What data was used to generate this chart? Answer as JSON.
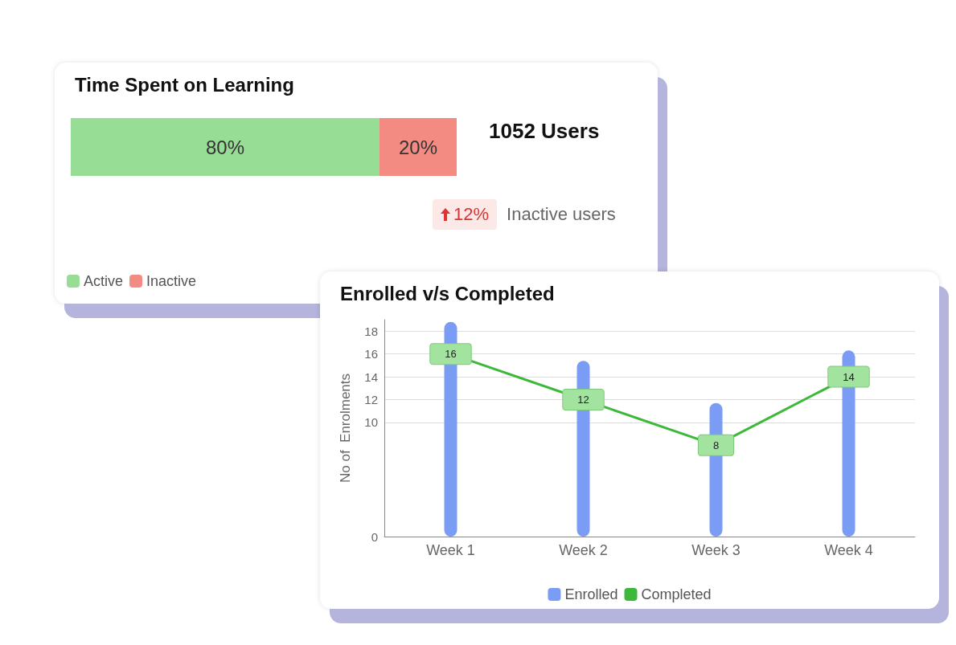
{
  "chart_data": [
    {
      "type": "bar",
      "title": "Time Spent on Learning",
      "orientation": "horizontal",
      "stacked": true,
      "categories": [
        null
      ],
      "xlim": [
        0,
        100
      ],
      "tick_labels": false,
      "grid": false,
      "legend": "bottom left",
      "series": [
        {
          "name": "Active",
          "color": "#97dd96",
          "values": [
            80
          ],
          "value_labels": [
            "80%"
          ]
        },
        {
          "name": "Inactive",
          "color": "#f48b82",
          "values": [
            20
          ],
          "value_labels": [
            "20%"
          ]
        }
      ],
      "annotations": [
        "1052 Users",
        "12%",
        "Inactive users"
      ]
    },
    {
      "type": "bar",
      "title": "Enrolled v/s Completed",
      "ylabel": "No of  Enrolments",
      "categories": [
        "Week 1",
        "Week 2",
        "Week 3",
        "Week 4"
      ],
      "ylim": [
        0,
        19
      ],
      "yticks": [
        0,
        10,
        12,
        14,
        16,
        18
      ],
      "grid": "y",
      "legend": "bottom",
      "series": [
        {
          "name": "Enrolled",
          "color": "#7b9cf5",
          "values": [
            18.8,
            15.4,
            11.7,
            16.3
          ]
        },
        {
          "name": "Completed",
          "type": "line",
          "color": "#3db83a",
          "values": [
            16,
            12,
            8,
            14
          ],
          "value_labels": [
            "16",
            "12",
            "8",
            "14"
          ]
        }
      ]
    }
  ]
}
